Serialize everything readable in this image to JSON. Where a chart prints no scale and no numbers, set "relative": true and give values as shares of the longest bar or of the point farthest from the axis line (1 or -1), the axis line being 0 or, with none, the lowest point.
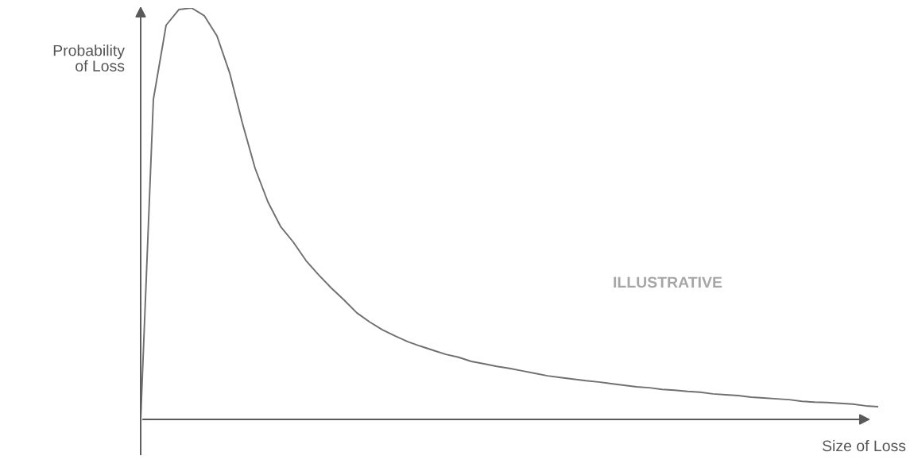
{
  "chart_data": {
    "type": "line",
    "relative": true,
    "xlabel": "Size of Loss",
    "ylabel": "Probability\nof Loss",
    "annotations": [
      "ILLUSTRATIVE"
    ],
    "categories": [
      null,
      null,
      null,
      null,
      null,
      null,
      null,
      null,
      null,
      null,
      null,
      null,
      null,
      null,
      null,
      null,
      null,
      null,
      null,
      null,
      null,
      null,
      null,
      null,
      null,
      null,
      null,
      null,
      null,
      null,
      null,
      null,
      null,
      null,
      null,
      null,
      null,
      null,
      null,
      null,
      null,
      null,
      null,
      null,
      null,
      null,
      null,
      null,
      null,
      null,
      null,
      null,
      null,
      null,
      null,
      null,
      null,
      null,
      null
    ],
    "series": [
      {
        "color": "#707070",
        "values": [
          0,
          0.778,
          0.958,
          0.996,
          1,
          0.981,
          0.932,
          0.842,
          0.72,
          0.61,
          0.529,
          0.469,
          0.431,
          0.386,
          0.351,
          0.319,
          0.29,
          0.259,
          0.237,
          0.218,
          0.203,
          0.189,
          0.178,
          0.168,
          0.158,
          0.151,
          0.141,
          0.135,
          0.129,
          0.124,
          0.118,
          0.112,
          0.106,
          0.102,
          0.098,
          0.094,
          0.091,
          0.087,
          0.083,
          0.079,
          0.077,
          0.073,
          0.071,
          0.068,
          0.066,
          0.062,
          0.06,
          0.058,
          0.054,
          0.052,
          0.05,
          0.048,
          0.044,
          0.042,
          0.041,
          0.039,
          0.037,
          0.033,
          0.031
        ]
      }
    ],
    "tick_labels": false
  }
}
